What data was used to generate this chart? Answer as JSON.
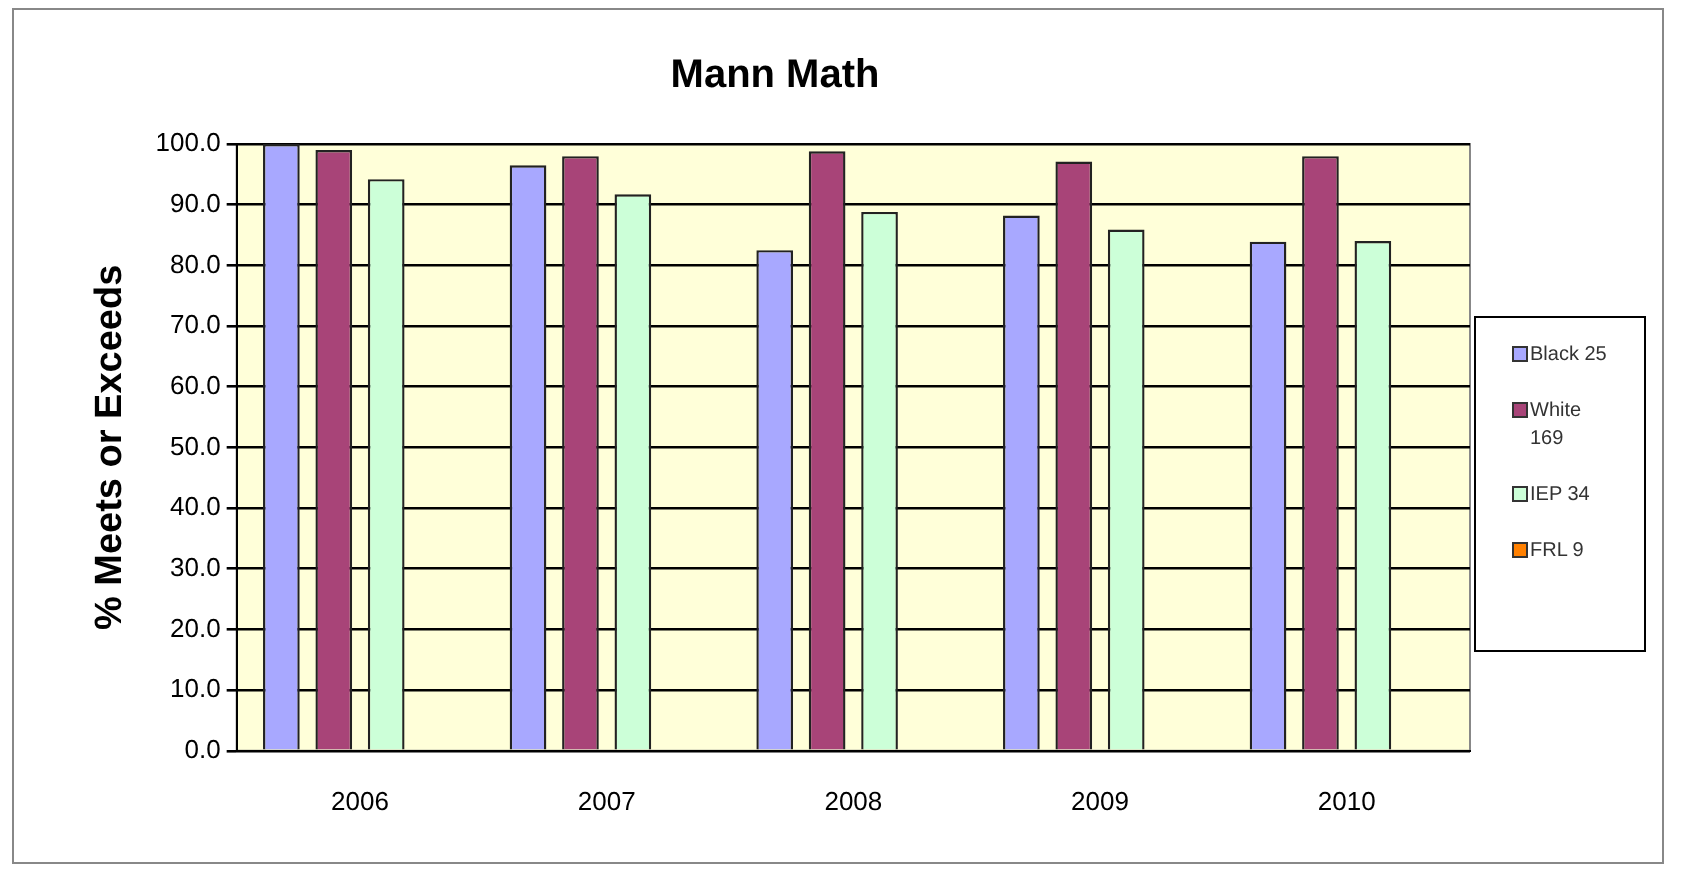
{
  "chart_data": {
    "type": "bar",
    "title": "Mann Math",
    "ylabel": "% Meets or Exceeds",
    "categories": [
      "2006",
      "2007",
      "2008",
      "2009",
      "2010"
    ],
    "series": [
      {
        "name": "Black 25",
        "color": "#a8a8ff",
        "values": [
          100,
          96.5,
          82.5,
          88.2,
          83.9
        ]
      },
      {
        "name": "White 169",
        "color": "#a84478",
        "values": [
          99,
          98,
          98.8,
          97.1,
          98
        ]
      },
      {
        "name": "IEP 34",
        "color": "#ccffd8",
        "values": [
          94.2,
          91.7,
          88.8,
          85.9,
          84
        ]
      },
      {
        "name": "FRL 9",
        "color": "#ff8000",
        "values": [
          null,
          null,
          null,
          null,
          null
        ]
      }
    ],
    "ylim": [
      0,
      100
    ],
    "yticks": [
      {
        "value": 0,
        "label": "0.0"
      },
      {
        "value": 10,
        "label": "10.0"
      },
      {
        "value": 20,
        "label": "20.0"
      },
      {
        "value": 30,
        "label": "30.0"
      },
      {
        "value": 40,
        "label": "40.0"
      },
      {
        "value": 50,
        "label": "50.0"
      },
      {
        "value": 60,
        "label": "60.0"
      },
      {
        "value": 70,
        "label": "70.0"
      },
      {
        "value": 80,
        "label": "80.0"
      },
      {
        "value": 90,
        "label": "90.0"
      },
      {
        "value": 100,
        "label": "100.0"
      }
    ],
    "grid": "y",
    "legend": "right"
  }
}
